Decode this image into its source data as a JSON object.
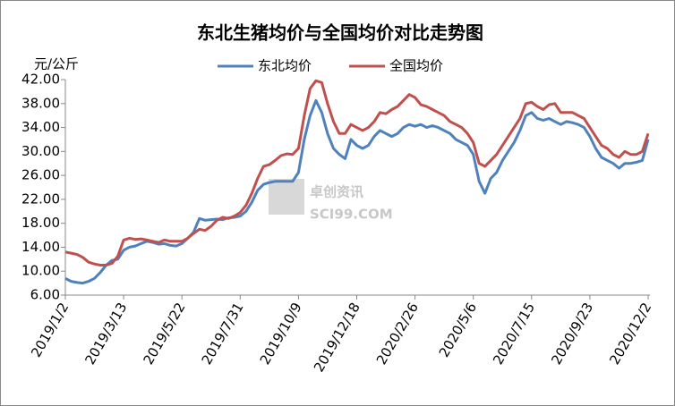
{
  "chart_data": {
    "type": "line",
    "title": "东北生猪均价与全国均价对比走势图",
    "y_label": "元/公斤",
    "watermark": [
      "卓创资讯",
      "SCI99.COM"
    ],
    "categories": [
      "2019/1/2",
      null,
      null,
      null,
      null,
      null,
      null,
      null,
      null,
      null,
      "2019/3/13",
      null,
      null,
      null,
      null,
      null,
      null,
      null,
      null,
      null,
      "2019/5/22",
      null,
      null,
      null,
      null,
      null,
      null,
      null,
      null,
      null,
      "2019/7/31",
      null,
      null,
      null,
      null,
      null,
      null,
      null,
      null,
      null,
      "2019/10/9",
      null,
      null,
      null,
      null,
      null,
      null,
      null,
      null,
      null,
      "2019/12/18",
      null,
      null,
      null,
      null,
      null,
      null,
      null,
      null,
      null,
      "2020/2/26",
      null,
      null,
      null,
      null,
      null,
      null,
      null,
      null,
      null,
      "2020/5/6",
      null,
      null,
      null,
      null,
      null,
      null,
      null,
      null,
      null,
      "2020/7/15",
      null,
      null,
      null,
      null,
      null,
      null,
      null,
      null,
      null,
      "2020/9/23",
      null,
      null,
      null,
      null,
      null,
      null,
      null,
      null,
      null,
      "2020/12/2"
    ],
    "series": [
      {
        "name": "东北均价",
        "color": "#4f81bd",
        "values": [
          8.8,
          8.3,
          8.1,
          8.0,
          8.3,
          8.8,
          9.8,
          11.0,
          11.8,
          12.0,
          13.5,
          14.0,
          14.2,
          14.6,
          15.0,
          14.8,
          14.5,
          14.6,
          14.3,
          14.2,
          14.6,
          15.5,
          16.5,
          18.8,
          18.5,
          18.6,
          18.7,
          18.6,
          18.9,
          19.0,
          19.2,
          20.0,
          21.5,
          23.5,
          24.5,
          24.8,
          25.0,
          25.0,
          25.0,
          25.0,
          26.5,
          32.0,
          36.0,
          38.5,
          36.5,
          33.0,
          30.5,
          29.5,
          28.8,
          32.0,
          31.0,
          30.5,
          31.0,
          32.5,
          33.5,
          33.0,
          32.5,
          33.0,
          34.0,
          34.5,
          34.2,
          34.5,
          34.0,
          34.3,
          34.0,
          33.5,
          33.0,
          32.0,
          31.5,
          31.0,
          29.5,
          25.0,
          23.0,
          25.5,
          26.5,
          28.5,
          30.0,
          31.5,
          33.5,
          36.0,
          36.5,
          35.5,
          35.2,
          35.5,
          35.0,
          34.5,
          35.0,
          34.8,
          34.5,
          34.0,
          32.5,
          30.5,
          29.0,
          28.5,
          28.0,
          27.2,
          28.0,
          28.0,
          28.2,
          28.5,
          32.0
        ]
      },
      {
        "name": "全国均价",
        "color": "#c0504d",
        "values": [
          13.2,
          13.0,
          12.8,
          12.3,
          11.5,
          11.2,
          11.0,
          11.0,
          11.3,
          12.5,
          15.2,
          15.5,
          15.3,
          15.4,
          15.2,
          15.0,
          14.8,
          15.2,
          15.0,
          15.0,
          15.0,
          15.5,
          16.3,
          17.0,
          16.8,
          17.5,
          18.5,
          19.0,
          18.8,
          19.2,
          19.8,
          21.0,
          23.0,
          25.5,
          27.5,
          27.8,
          28.5,
          29.3,
          29.6,
          29.5,
          30.5,
          36.0,
          40.5,
          41.8,
          41.5,
          38.0,
          35.0,
          33.0,
          33.0,
          34.5,
          34.0,
          33.5,
          34.0,
          35.0,
          36.5,
          36.3,
          37.0,
          37.5,
          38.5,
          39.5,
          39.0,
          37.8,
          37.5,
          37.0,
          36.5,
          36.0,
          35.0,
          34.5,
          34.0,
          33.0,
          31.5,
          28.0,
          27.5,
          28.5,
          29.5,
          31.0,
          32.5,
          34.0,
          35.5,
          38.0,
          38.2,
          37.5,
          37.0,
          37.8,
          38.0,
          36.5,
          36.5,
          36.5,
          36.0,
          35.5,
          34.0,
          32.5,
          31.0,
          30.5,
          29.5,
          29.0,
          30.0,
          29.5,
          29.5,
          30.0,
          33.0
        ]
      }
    ],
    "ylim": [
      6,
      42
    ],
    "yticks": [
      {
        "value": 6,
        "label": "6.00"
      },
      {
        "value": 10,
        "label": "10.00"
      },
      {
        "value": 14,
        "label": "14.00"
      },
      {
        "value": 18,
        "label": "18.00"
      },
      {
        "value": 22,
        "label": "22.00"
      },
      {
        "value": 26,
        "label": "26.00"
      },
      {
        "value": 30,
        "label": "30.00"
      },
      {
        "value": 34,
        "label": "34.00"
      },
      {
        "value": 38,
        "label": "38.00"
      },
      {
        "value": 42,
        "label": "42.00"
      }
    ],
    "grid": false
  }
}
